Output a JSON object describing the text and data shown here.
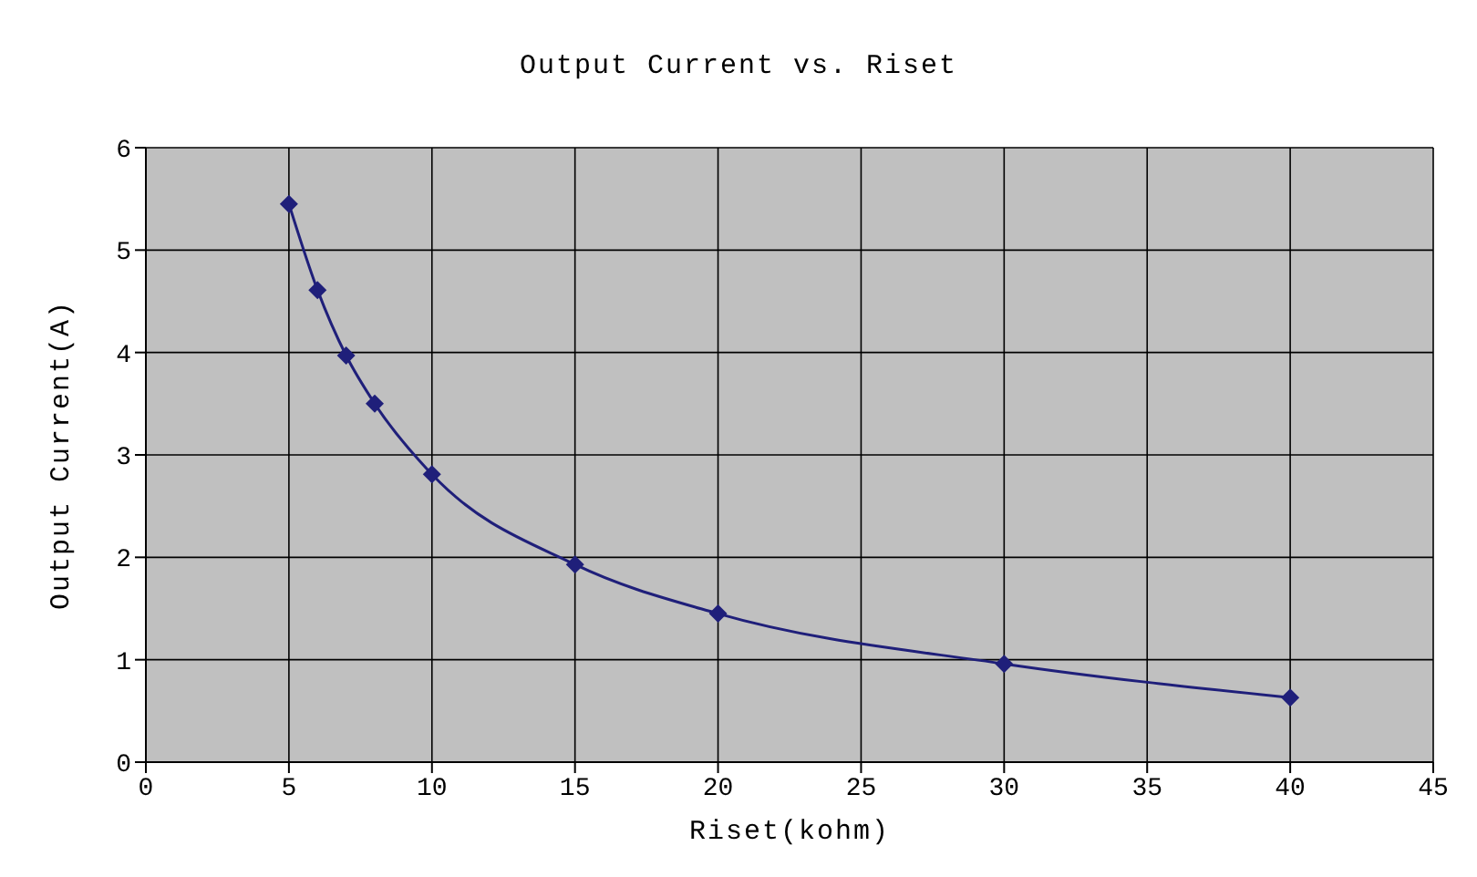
{
  "chart_data": {
    "type": "line",
    "title": "Output Current vs. Riset",
    "xlabel": "Riset(kohm)",
    "ylabel": "Output Current(A)",
    "x": [
      5,
      6,
      7,
      8,
      10,
      15,
      20,
      30,
      40
    ],
    "series": [
      {
        "color": "#1f1f7a",
        "values": [
          5.45,
          4.61,
          3.97,
          3.5,
          2.81,
          1.93,
          1.45,
          0.96,
          0.63
        ]
      }
    ],
    "xlim": [
      0,
      45
    ],
    "xticks": [
      0,
      5,
      10,
      15,
      20,
      25,
      30,
      35,
      40,
      45
    ],
    "ylim": [
      0,
      6
    ],
    "yticks": [
      0,
      1,
      2,
      3,
      4,
      5,
      6
    ],
    "grid": true,
    "legend": false,
    "marker": "diamond",
    "line_style": "solid"
  }
}
